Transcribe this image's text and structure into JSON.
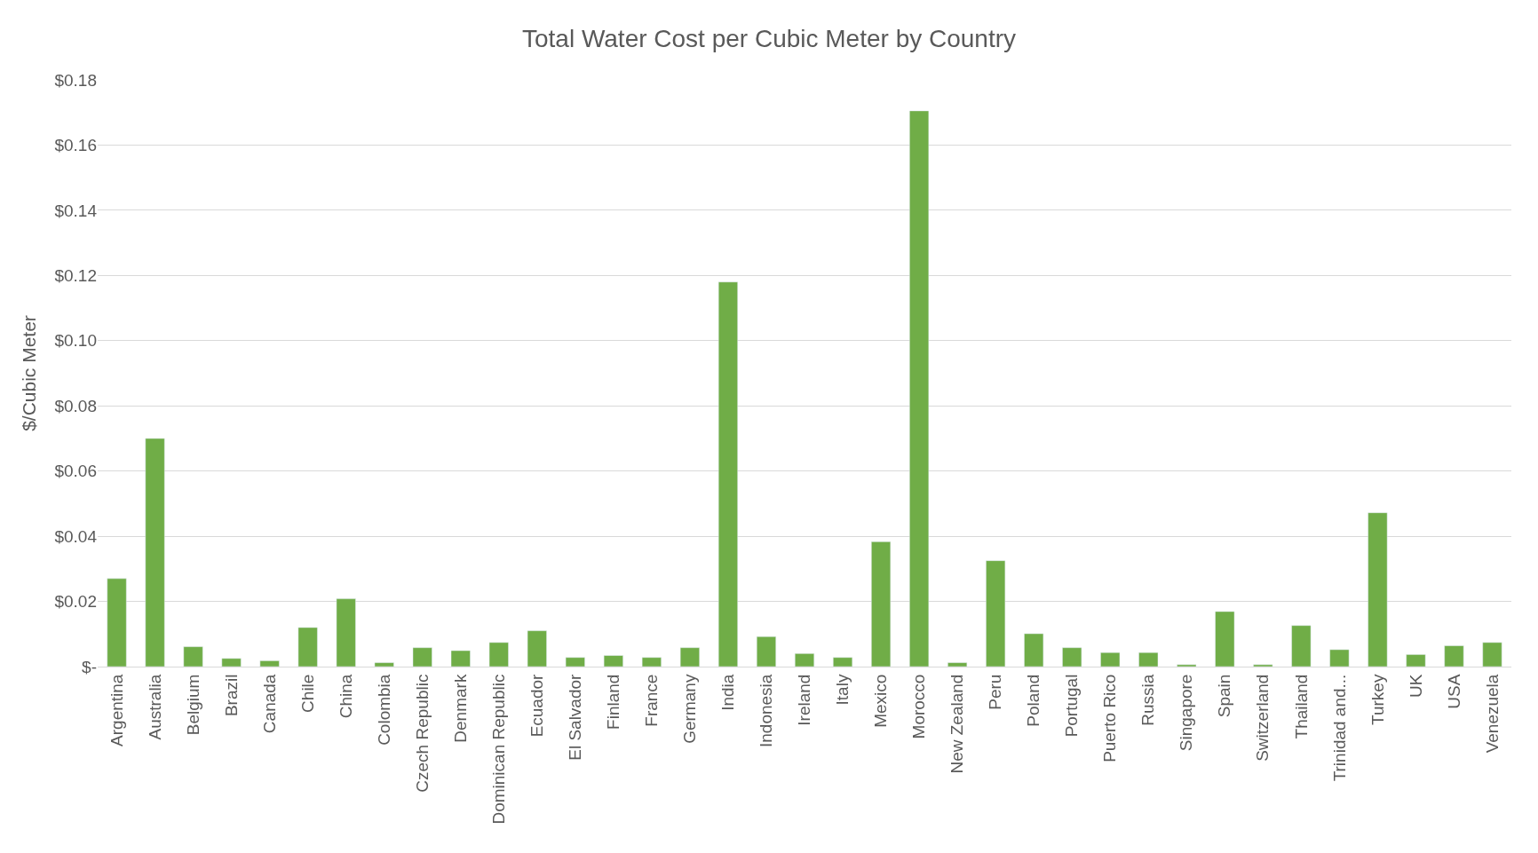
{
  "chart_data": {
    "type": "bar",
    "title": "Total Water Cost per Cubic Meter by Country",
    "ylabel": "$/Cubic Meter",
    "categories": [
      "Argentina",
      "Australia",
      "Belgium",
      "Brazil",
      "Canada",
      "Chile",
      "China",
      "Colombia",
      "Czech Republic",
      "Denmark",
      "Dominican Republic",
      "Ecuador",
      "El Salvador",
      "Finland",
      "France",
      "Germany",
      "India",
      "Indonesia",
      "Ireland",
      "Italy",
      "Mexico",
      "Morocco",
      "New Zealand",
      "Peru",
      "Poland",
      "Portugal",
      "Puerto Rico",
      "Russia",
      "Singapore",
      "Spain",
      "Switzerland",
      "Thailand",
      "Trinidad and...",
      "Turkey",
      "UK",
      "USA",
      "Venezuela"
    ],
    "values": [
      0.027,
      0.07,
      0.0061,
      0.0025,
      0.0018,
      0.012,
      0.0208,
      0.0012,
      0.0058,
      0.0049,
      0.0074,
      0.011,
      0.0028,
      0.0034,
      0.0028,
      0.0058,
      0.118,
      0.0092,
      0.004,
      0.0028,
      0.0383,
      0.1705,
      0.0012,
      0.0325,
      0.0101,
      0.0058,
      0.0043,
      0.0043,
      0.0006,
      0.0169,
      0.0006,
      0.0126,
      0.0052,
      0.0472,
      0.0037,
      0.0064,
      0.0074
    ],
    "color": "#70ad47",
    "ylim": [
      0,
      0.18
    ],
    "yticks": [
      {
        "value": 0,
        "label": "$-"
      },
      {
        "value": 0.02,
        "label": "$0.02"
      },
      {
        "value": 0.04,
        "label": "$0.04"
      },
      {
        "value": 0.06,
        "label": "$0.06"
      },
      {
        "value": 0.08,
        "label": "$0.08"
      },
      {
        "value": 0.1,
        "label": "$0.10"
      },
      {
        "value": 0.12,
        "label": "$0.12"
      },
      {
        "value": 0.14,
        "label": "$0.14"
      },
      {
        "value": 0.16,
        "label": "$0.16"
      },
      {
        "value": 0.18,
        "label": "$0.18"
      }
    ],
    "grid": "y"
  }
}
